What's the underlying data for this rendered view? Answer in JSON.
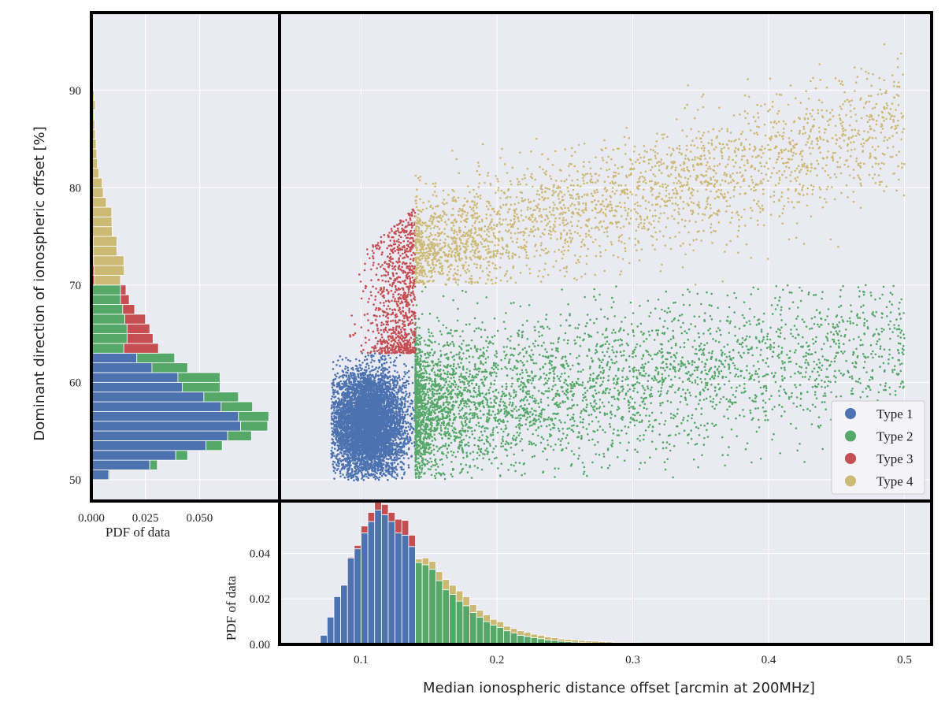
{
  "chart_data": [
    {
      "id": "scatter",
      "type": "scatter",
      "xlabel": "Median ionospheric distance offset [arcmin at 200MHz]",
      "ylabel": "Dominant direction of ionospheric offset [%]",
      "xlim": [
        0.04,
        0.52
      ],
      "ylim": [
        47.8,
        98.0
      ],
      "xticks": [
        "0.1",
        "0.2",
        "0.3",
        "0.4",
        "0.5"
      ],
      "yticks": [
        "50",
        "60",
        "70",
        "80",
        "90"
      ],
      "grid": true,
      "legend_position": "bottom-right",
      "series": [
        {
          "name": "Type 1",
          "color": "#4c72b0",
          "region": {
            "x": [
              0.078,
              0.14
            ],
            "y": [
              49.9,
              63
            ]
          },
          "approx_points": 6000
        },
        {
          "name": "Type 2",
          "color": "#55a868",
          "region": {
            "x": [
              0.14,
              0.5
            ],
            "y": [
              50,
              70
            ]
          },
          "approx_points": 4000
        },
        {
          "name": "Type 3",
          "color": "#c44e52",
          "region": {
            "x": [
              0.09,
              0.14
            ],
            "y": [
              63,
              79
            ]
          },
          "approx_points": 900
        },
        {
          "name": "Type 4",
          "color": "#ccb974",
          "region": {
            "x": [
              0.14,
              0.5
            ],
            "y": [
              70,
              96
            ]
          },
          "approx_points": 2700
        }
      ]
    },
    {
      "id": "hist_x",
      "type": "bar",
      "stacked": true,
      "ylabel": "PDF of data",
      "xlim": [
        0.04,
        0.52
      ],
      "ylim": [
        0,
        0.063
      ],
      "yticks": [
        "0.00",
        "0.02",
        "0.04"
      ],
      "bin_width": 0.005,
      "bin_starts": [
        0.07,
        0.075,
        0.08,
        0.085,
        0.09,
        0.095,
        0.1,
        0.105,
        0.11,
        0.115,
        0.12,
        0.125,
        0.13,
        0.135,
        0.14,
        0.145,
        0.15,
        0.155,
        0.16,
        0.165,
        0.17,
        0.175,
        0.18,
        0.185,
        0.19,
        0.195,
        0.2,
        0.205,
        0.21,
        0.215,
        0.22,
        0.225,
        0.23,
        0.235,
        0.24,
        0.245,
        0.25,
        0.255,
        0.26,
        0.265,
        0.27,
        0.275,
        0.28,
        0.285,
        0.29,
        0.295,
        0.3,
        0.305,
        0.31,
        0.315,
        0.32
      ],
      "series": [
        {
          "name": "Type 1",
          "color": "#4c72b0",
          "values": [
            0.004,
            0.012,
            0.021,
            0.026,
            0.038,
            0.042,
            0.049,
            0.054,
            0.059,
            0.057,
            0.054,
            0.049,
            0.048,
            0.043,
            0,
            0,
            0,
            0,
            0,
            0,
            0,
            0,
            0,
            0,
            0,
            0,
            0,
            0,
            0,
            0,
            0,
            0,
            0,
            0,
            0,
            0,
            0,
            0,
            0,
            0,
            0,
            0,
            0,
            0,
            0,
            0,
            0,
            0,
            0,
            0,
            0
          ]
        },
        {
          "name": "Type 2",
          "color": "#55a868",
          "values": [
            0,
            0,
            0,
            0,
            0,
            0,
            0,
            0,
            0,
            0,
            0,
            0,
            0,
            0,
            0.036,
            0.035,
            0.033,
            0.028,
            0.024,
            0.022,
            0.019,
            0.017,
            0.014,
            0.012,
            0.01,
            0.0085,
            0.0075,
            0.006,
            0.005,
            0.004,
            0.0035,
            0.003,
            0.0025,
            0.002,
            0.0017,
            0.0014,
            0.0012,
            0.001,
            0.0008,
            0.0007,
            0.0006,
            0.0005,
            0.0004,
            0.0003,
            0.0003,
            0.0002,
            0.0002,
            0.0001,
            0.0001,
            0.0001,
            0.0001
          ]
        },
        {
          "name": "Type 3",
          "color": "#c44e52",
          "values": [
            0,
            0,
            0,
            0,
            0.0004,
            0.0015,
            0.003,
            0.004,
            0.0045,
            0.0045,
            0.004,
            0.006,
            0.0065,
            0.005,
            0,
            0,
            0,
            0,
            0,
            0,
            0,
            0,
            0,
            0,
            0,
            0,
            0,
            0,
            0,
            0,
            0,
            0,
            0,
            0,
            0,
            0,
            0,
            0,
            0,
            0,
            0,
            0,
            0,
            0,
            0,
            0,
            0,
            0,
            0,
            0,
            0
          ]
        },
        {
          "name": "Type 4",
          "color": "#ccb974",
          "values": [
            0,
            0,
            0,
            0,
            0,
            0,
            0,
            0,
            0,
            0,
            0,
            0,
            0,
            0,
            0.0015,
            0.003,
            0.0035,
            0.004,
            0.0045,
            0.004,
            0.0045,
            0.004,
            0.0035,
            0.003,
            0.003,
            0.0025,
            0.0025,
            0.002,
            0.002,
            0.002,
            0.0018,
            0.0015,
            0.0015,
            0.0013,
            0.0012,
            0.001,
            0.001,
            0.001,
            0.0009,
            0.0008,
            0.0008,
            0.0007,
            0.0007,
            0.0006,
            0.0006,
            0.0005,
            0.0005,
            0.0004,
            0.0004,
            0.0004,
            0.0003
          ]
        }
      ]
    },
    {
      "id": "hist_y",
      "type": "bar",
      "orientation": "horizontal",
      "stacked": true,
      "xlabel": "PDF of data",
      "xlim": [
        0,
        0.087
      ],
      "ylim": [
        47.8,
        98.0
      ],
      "xticks": [
        "0.000",
        "0.025",
        "0.050"
      ],
      "bin_height": 1.0,
      "bin_starts": [
        50,
        51,
        52,
        53,
        54,
        55,
        56,
        57,
        58,
        59,
        60,
        61,
        62,
        63,
        64,
        65,
        66,
        67,
        68,
        69,
        70,
        71,
        72,
        73,
        74,
        75,
        76,
        77,
        78,
        79,
        80,
        81,
        82,
        83,
        84,
        85,
        86,
        87,
        88,
        89,
        90
      ],
      "series": [
        {
          "name": "Type 1",
          "color": "#4c72b0",
          "values": [
            0.008,
            0.027,
            0.039,
            0.053,
            0.063,
            0.069,
            0.068,
            0.06,
            0.052,
            0.042,
            0.04,
            0.028,
            0.021,
            0,
            0,
            0,
            0,
            0,
            0,
            0,
            0,
            0,
            0,
            0,
            0,
            0,
            0,
            0,
            0,
            0,
            0,
            0,
            0,
            0,
            0,
            0,
            0,
            0,
            0,
            0,
            0
          ]
        },
        {
          "name": "Type 2",
          "color": "#55a868",
          "values": [
            0.0005,
            0.0035,
            0.0055,
            0.0075,
            0.011,
            0.0125,
            0.014,
            0.0145,
            0.016,
            0.0175,
            0.0195,
            0.0165,
            0.0175,
            0.015,
            0.0165,
            0.0165,
            0.0155,
            0.0145,
            0.0135,
            0.0135,
            0,
            0,
            0,
            0,
            0,
            0,
            0,
            0,
            0,
            0,
            0,
            0,
            0,
            0,
            0,
            0,
            0,
            0,
            0,
            0,
            0
          ]
        },
        {
          "name": "Type 3",
          "color": "#c44e52",
          "values": [
            0,
            0,
            0,
            0,
            0,
            0,
            0,
            0,
            0,
            0,
            0,
            0,
            0,
            0.016,
            0.012,
            0.0105,
            0.0095,
            0.0055,
            0.004,
            0.0025,
            0.0015,
            0.0012,
            0.001,
            0.0008,
            0.0008,
            0.0006,
            0.0005,
            0.0004,
            0.0004,
            0,
            0,
            0,
            0,
            0,
            0,
            0,
            0,
            0,
            0,
            0,
            0
          ]
        },
        {
          "name": "Type 4",
          "color": "#ccb974",
          "values": [
            0,
            0,
            0,
            0,
            0,
            0,
            0,
            0,
            0,
            0,
            0,
            0,
            0,
            0,
            0,
            0,
            0,
            0,
            0,
            0,
            0.012,
            0.014,
            0.014,
            0.011,
            0.011,
            0.009,
            0.009,
            0.009,
            0.0065,
            0.0055,
            0.005,
            0.0035,
            0.0028,
            0.0025,
            0.0022,
            0.0018,
            0.0016,
            0.0012,
            0.0018,
            0.0012,
            0.0009
          ]
        }
      ]
    }
  ]
}
